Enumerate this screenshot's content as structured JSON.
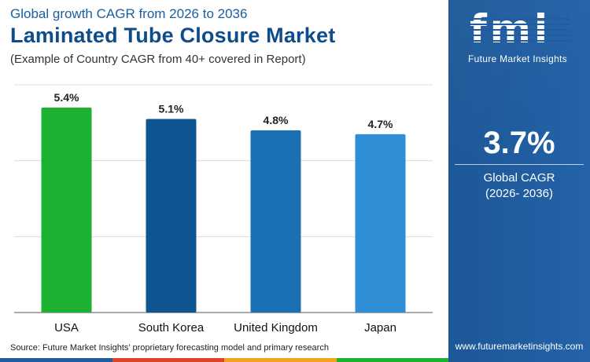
{
  "header": {
    "subtitle": "Global growth CAGR from 2026 to 2036",
    "title": "Laminated Tube Closure Market",
    "note": "(Example of Country CAGR from 40+ covered in Report)"
  },
  "chart_data": {
    "type": "bar",
    "categories": [
      "USA",
      "South Korea",
      "United Kingdom",
      "Japan"
    ],
    "values": [
      5.4,
      5.1,
      4.8,
      4.7
    ],
    "value_labels": [
      "5.4%",
      "5.1%",
      "4.8%",
      "4.7%"
    ],
    "bar_colors": [
      "#1db232",
      "#0f5591",
      "#1b6fb3",
      "#2e8fd6"
    ],
    "ylim": [
      0,
      6
    ],
    "grid": true,
    "title": "",
    "xlabel": "",
    "ylabel": ""
  },
  "source": "Source: Future Market Insights’ proprietary forecasting model and primary research",
  "sidebar": {
    "logo_text": "fmi",
    "logo_tagline": "Future Market Insights",
    "global_cagr_value": "3.7%",
    "global_cagr_label": "Global CAGR",
    "global_cagr_period": "(2026- 2036)",
    "website": "www.futuremarketinsights.com"
  },
  "colors": {
    "title": "#0f4c8a",
    "sidebar_bg": "#1f5da0",
    "bottom_bar": [
      "#1f5da0",
      "#e0432b",
      "#f2a21b",
      "#1db232"
    ]
  }
}
